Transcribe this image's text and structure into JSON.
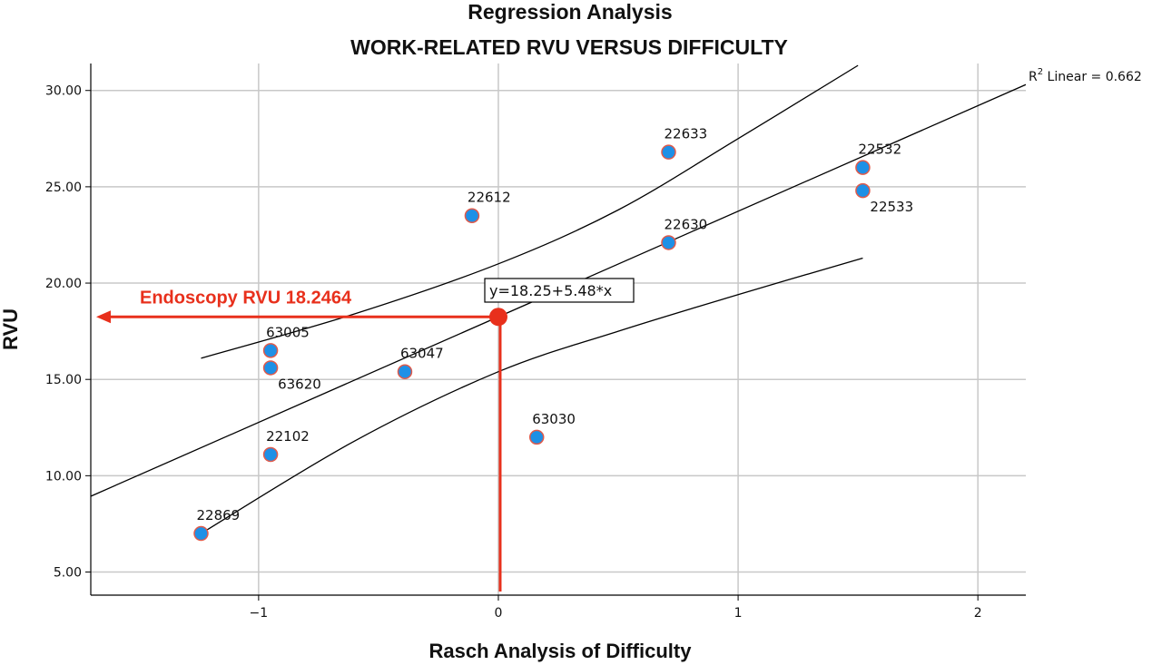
{
  "chart_data": {
    "type": "scatter",
    "title": "Regression Analysis",
    "subtitle": "WORK-RELATED RVU VERSUS DIFFICULTY",
    "xlabel": "Rasch Analysis of Difficulty",
    "ylabel": "RVU",
    "xlim": [
      -1.7,
      2.2
    ],
    "ylim": [
      3.8,
      31.4
    ],
    "x_ticks": [
      {
        "value": -1,
        "label": "−1"
      },
      {
        "value": 0,
        "label": "0"
      },
      {
        "value": 1,
        "label": "1"
      },
      {
        "value": 2,
        "label": "2"
      }
    ],
    "y_ticks": [
      {
        "value": 5,
        "label": "5.00"
      },
      {
        "value": 10,
        "label": "10.00"
      },
      {
        "value": 15,
        "label": "15.00"
      },
      {
        "value": 20,
        "label": "20.00"
      },
      {
        "value": 25,
        "label": "25.00"
      },
      {
        "value": 30,
        "label": "30.00"
      }
    ],
    "grid": true,
    "points": [
      {
        "label": "22869",
        "x": -1.24,
        "y": 7.0,
        "label_pos": "above"
      },
      {
        "label": "22102",
        "x": -0.95,
        "y": 11.1,
        "label_pos": "above"
      },
      {
        "label": "63005",
        "x": -0.95,
        "y": 16.5,
        "label_pos": "above"
      },
      {
        "label": "63620",
        "x": -0.95,
        "y": 15.6,
        "label_pos": "below"
      },
      {
        "label": "63047",
        "x": -0.39,
        "y": 15.4,
        "label_pos": "above"
      },
      {
        "label": "22612",
        "x": -0.11,
        "y": 23.5,
        "label_pos": "above"
      },
      {
        "label": "63030",
        "x": 0.16,
        "y": 12.0,
        "label_pos": "above"
      },
      {
        "label": "22633",
        "x": 0.71,
        "y": 26.8,
        "label_pos": "above"
      },
      {
        "label": "22630",
        "x": 0.71,
        "y": 22.1,
        "label_pos": "above"
      },
      {
        "label": "22532",
        "x": 1.52,
        "y": 26.0,
        "label_pos": "above"
      },
      {
        "label": "22533",
        "x": 1.52,
        "y": 24.8,
        "label_pos": "below"
      }
    ],
    "fit": {
      "type": "linear",
      "intercept": 18.25,
      "slope": 5.48,
      "equation_label": "y=18.25+5.48*x",
      "r2_label_prefix": "R",
      "r2_label_sup": "2",
      "r2_label_suffix": " Linear = 0.662",
      "x_range": [
        -1.7,
        2.2
      ]
    },
    "confidence_band": {
      "upper": [
        [
          -1.24,
          16.1
        ],
        [
          -0.6,
          18.4
        ],
        [
          0.0,
          21.0
        ],
        [
          0.5,
          23.8
        ],
        [
          1.0,
          27.5
        ],
        [
          1.5,
          31.3
        ]
      ],
      "lower": [
        [
          -1.24,
          7.0
        ],
        [
          -0.6,
          11.8
        ],
        [
          0.0,
          15.4
        ],
        [
          0.5,
          17.5
        ],
        [
          1.0,
          19.4
        ],
        [
          1.52,
          21.3
        ]
      ]
    },
    "highlight": {
      "label": "Endoscopy RVU 18.2464",
      "x": 0,
      "y": 18.2464,
      "color": "#e8301c"
    },
    "colors": {
      "point_fill": "#1e90e6",
      "point_stroke": "#e05a4a",
      "grid": "#c8c8c8",
      "line": "#000000",
      "accent": "#e8301c"
    }
  }
}
